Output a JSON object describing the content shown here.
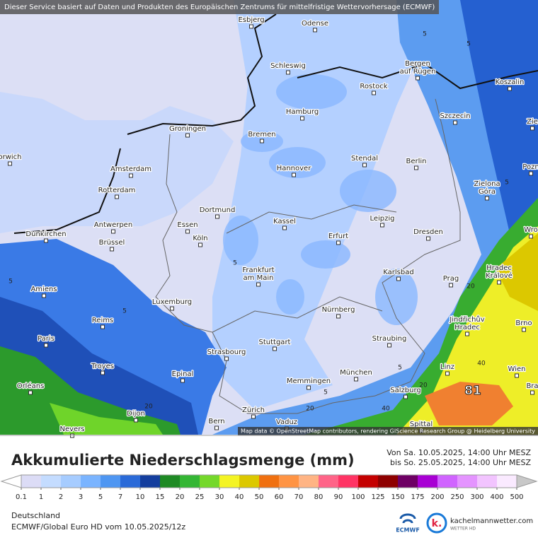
{
  "banner": "Dieser Service basiert auf Daten und Produkten des Europäischen Zentrums für mittelfristige Wettervorhersage (ECMWF)",
  "cities": [
    "Esbjerg",
    "Odense",
    "Schleswig",
    [
      "Bergen",
      "auf Rügen"
    ],
    "Koszalin",
    "Rostock",
    "Hamburg",
    "Szczecin",
    "Groningen",
    "Bremen",
    "Stendal",
    "Berlin",
    "Amsterdam",
    "Hannover",
    "Rotterdam",
    [
      "Zielona",
      "Góra"
    ],
    "Dortmund",
    "Leipzig",
    "Kassel",
    "Essen",
    "Antwerpen",
    "Erfurt",
    "Dunkirchen",
    "Dresden",
    "Köln",
    "Brüssel",
    [
      "Frankfurt",
      "am Main"
    ],
    "Karlsbad",
    "Prag",
    "Amiens",
    [
      "Hradec",
      "Králové"
    ],
    "Luxemburg",
    "Nürnberg",
    [
      "Jindřichův",
      "Hradec"
    ],
    "Reims",
    "Brno",
    "Paris",
    "Stuttgart",
    "Straubing",
    "Strasbourg",
    "Troyes",
    "Linz",
    "Wien",
    "Epinal",
    "München",
    "Memmingen",
    "Orléans",
    "Salzburg",
    "Dijon",
    "Zürich",
    "Vaduz",
    "Nevers",
    "Bern",
    "Spittal",
    "orwich",
    "Pozn",
    "Wro",
    "Bra",
    "Zie"
  ],
  "contour_labels": [
    5,
    5,
    5,
    5,
    5,
    5,
    5,
    5,
    20,
    20,
    20,
    20,
    40,
    40,
    81
  ],
  "attribution": "Map data © OpenStreetMap contributors, rendering GIScience Research Group @ Heidelberg University",
  "title": "Akkumulierte Niederschlagsmenge (mm)",
  "period": [
    "Von Sa. 10.05.2025, 14:00 Uhr MESZ",
    "bis So. 25.05.2025, 14:00 Uhr MESZ"
  ],
  "legend_ticks": [
    0.1,
    1,
    2,
    3,
    5,
    7,
    10,
    15,
    20,
    25,
    30,
    40,
    50,
    60,
    70,
    80,
    90,
    100,
    125,
    150,
    175,
    200,
    250,
    300,
    400,
    500
  ],
  "legend_colors": [
    "#dcdcf6",
    "#c4dcff",
    "#a6ccff",
    "#7ab4ff",
    "#4e96f2",
    "#2a6ad8",
    "#143e9e",
    "#1e8a24",
    "#34b634",
    "#74d82a",
    "#f4f424",
    "#dcc800",
    "#f07010",
    "#ff9444",
    "#ffb484",
    "#ff6488",
    "#ff3464",
    "#c40000",
    "#8e0000",
    "#6e0064",
    "#a800d4",
    "#d064ff",
    "#e494ff",
    "#f2c4ff",
    "#faeaff"
  ],
  "legend_under_color": "#ffffff",
  "legend_over_color": "#c8c8c8",
  "region": "Deutschland",
  "model": "ECMWF/Global Euro HD vom  10.05.2025/12z",
  "logos": {
    "ecmwf": "ECMWF",
    "site": "kachelmannwetter.com",
    "site_sub": "WETTER HD"
  }
}
